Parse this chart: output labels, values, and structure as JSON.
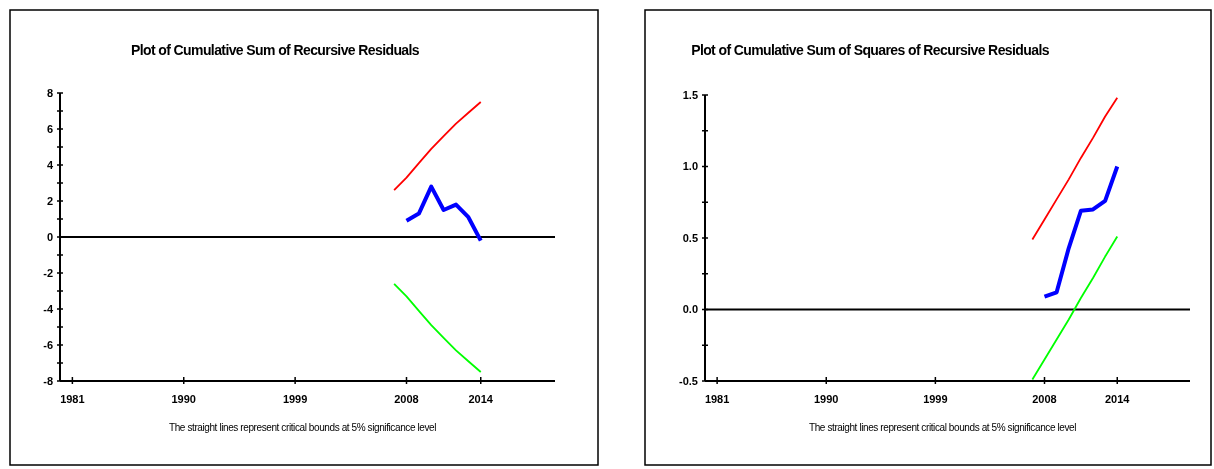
{
  "chart_data": [
    {
      "type": "line",
      "title": "Plot of Cumulative Sum of Recursive Residuals",
      "series": [
        {
          "color": "#ff0000",
          "x": [
            2007,
            2008,
            2009,
            2010,
            2011,
            2012,
            2013,
            2014
          ],
          "values": [
            2.6,
            3.3,
            4.1,
            4.9,
            5.6,
            6.3,
            6.9,
            7.5
          ]
        },
        {
          "color": "#0000ff",
          "x": [
            2008,
            2009,
            2010,
            2011,
            2012,
            2013,
            2014
          ],
          "values": [
            0.9,
            1.3,
            2.8,
            1.5,
            1.8,
            1.1,
            -0.2
          ]
        },
        {
          "color": "#00ff00",
          "x": [
            2007,
            2008,
            2009,
            2010,
            2011,
            2012,
            2013,
            2014
          ],
          "values": [
            -2.6,
            -3.3,
            -4.1,
            -4.9,
            -5.6,
            -6.3,
            -6.9,
            -7.5
          ]
        }
      ],
      "xlim": [
        1980,
        2020
      ],
      "xticks": [
        1981,
        1990,
        1999,
        2008,
        2014
      ],
      "ylim": [
        -8,
        8
      ],
      "yticks": [
        -8,
        {
          "value": -7,
          "label": null
        },
        -6,
        {
          "value": -5,
          "label": null
        },
        -4,
        {
          "value": -3,
          "label": null
        },
        -2,
        {
          "value": -1,
          "label": null
        },
        0,
        {
          "value": 1,
          "label": null
        },
        2,
        {
          "value": 3,
          "label": null
        },
        4,
        {
          "value": 5,
          "label": null
        },
        6,
        {
          "value": 7,
          "label": null
        },
        8
      ],
      "ref_lines": [
        {
          "axis": "y",
          "value": 0,
          "color": "#000000"
        }
      ],
      "annotations": [
        "The straight lines represent critical bounds at 5% significance level"
      ]
    },
    {
      "type": "line",
      "title": "Plot of Cumulative Sum of Squares of Recursive Residuals",
      "series": [
        {
          "color": "#ff0000",
          "x": [
            2007,
            2008,
            2009,
            2010,
            2011,
            2012,
            2013,
            2014
          ],
          "values": [
            0.49,
            0.63,
            0.77,
            0.91,
            1.06,
            1.2,
            1.35,
            1.48
          ]
        },
        {
          "color": "#0000ff",
          "x": [
            2008,
            2009,
            2010,
            2011,
            2012,
            2013,
            2014
          ],
          "values": [
            0.09,
            0.12,
            0.43,
            0.69,
            0.7,
            0.76,
            1.0
          ]
        },
        {
          "color": "#00ff00",
          "x": [
            2007,
            2008,
            2009,
            2010,
            2011,
            2012,
            2013,
            2014
          ],
          "values": [
            -0.49,
            -0.35,
            -0.21,
            -0.07,
            0.08,
            0.22,
            0.37,
            0.51
          ]
        }
      ],
      "xlim": [
        1980,
        2020
      ],
      "xticks": [
        1981,
        1990,
        1999,
        2008,
        2014
      ],
      "ylim": [
        -0.5,
        1.5
      ],
      "yticks": [
        {
          "value": -0.5,
          "label": "-0.5"
        },
        {
          "value": -0.25,
          "label": null
        },
        {
          "value": 0,
          "label": "0.0"
        },
        {
          "value": 0.25,
          "label": null
        },
        {
          "value": 0.5,
          "label": "0.5"
        },
        {
          "value": 0.75,
          "label": null
        },
        {
          "value": 1,
          "label": "1.0"
        },
        {
          "value": 1.25,
          "label": null
        },
        {
          "value": 1.5,
          "label": "1.5"
        }
      ],
      "ref_lines": [
        {
          "axis": "y",
          "value": 0,
          "color": "#000000"
        }
      ],
      "annotations": [
        "The straight lines represent critical bounds at 5% significance level"
      ]
    }
  ]
}
